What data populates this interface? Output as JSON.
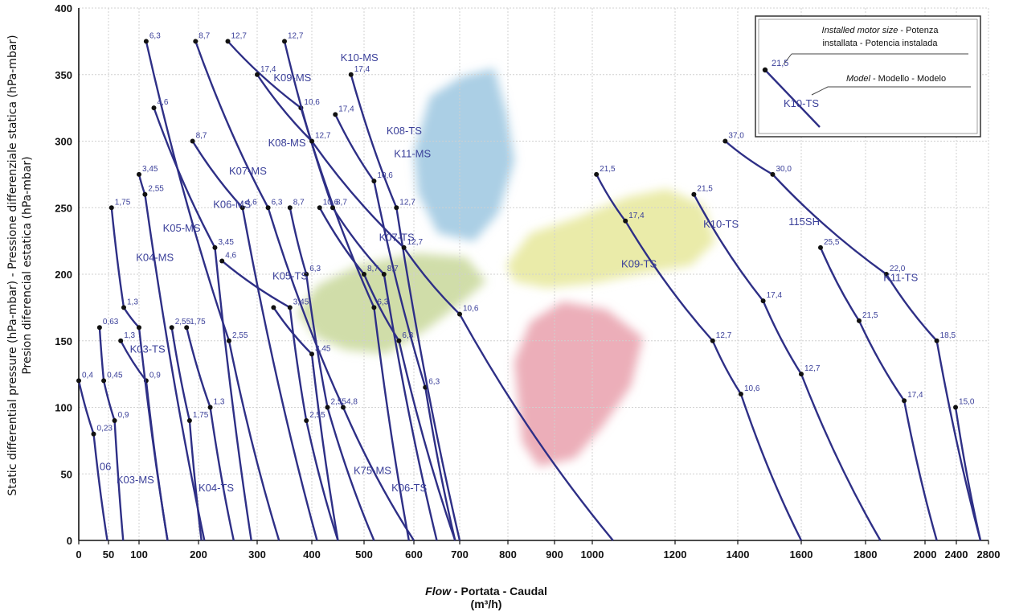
{
  "chart_data": {
    "type": "line",
    "xlabel_parts": [
      "Flow",
      " - Portata - Caudal"
    ],
    "xlabel_unit": "(m³/h)",
    "ylabel_lines": [
      "Static differential pressure (hPa-mbar) - Pressione differenziale statica (hPa-mbar)",
      "Presion diferencial estatica (hPa-mbar)"
    ],
    "y_ticks": [
      0,
      50,
      100,
      150,
      200,
      250,
      300,
      350,
      400
    ],
    "ylim": [
      0,
      400
    ],
    "x_ticks": [
      "0",
      "50",
      "100",
      "200",
      "300",
      "400",
      "500",
      "600",
      "700",
      "800",
      "900",
      "1000",
      "1200",
      "1400",
      "1600",
      "1800",
      "2000",
      "2400",
      "2800"
    ],
    "grid": true,
    "legend": {
      "placement": "top-right",
      "line1_italic": "Installed motor size",
      "line1_rest": " - Potenza",
      "line2": "installata - Potencia instalada",
      "motor_sample": "21,5",
      "line3_italic": "Model",
      "line3_rest": " - Modello - Modelo",
      "model_sample": "K10-TS"
    },
    "regions": [
      {
        "name": "blue",
        "color": "#8fbfdc"
      },
      {
        "name": "yellow-green",
        "color": "#e6e79a"
      },
      {
        "name": "olive",
        "color": "#c8d79a"
      },
      {
        "name": "pink",
        "color": "#e79aa8"
      }
    ],
    "series": [
      {
        "name": "06",
        "label_at": [
          35,
          53
        ],
        "points": [
          [
            0,
            120
          ],
          [
            25,
            80
          ],
          [
            48,
            0
          ]
        ],
        "labels": [
          "0,4",
          "0,23",
          null
        ]
      },
      {
        "name": "K03-MS",
        "label_at": [
          63,
          43
        ],
        "points": [
          [
            35,
            160
          ],
          [
            42,
            120
          ],
          [
            60,
            90
          ],
          [
            74,
            0
          ]
        ],
        "labels": [
          "0,63",
          "0,45",
          "0,9",
          null
        ]
      },
      {
        "name": "K03-TS",
        "label_at": [
          85,
          141
        ],
        "points": [
          [
            70,
            150
          ],
          [
            112,
            120
          ],
          [
            148,
            0
          ]
        ],
        "labels": [
          "1,3",
          "0,9",
          null
        ]
      },
      {
        "name": "K04-MS",
        "label_at": [
          95,
          210
        ],
        "points": [
          [
            55,
            250
          ],
          [
            75,
            175
          ],
          [
            100,
            160
          ],
          [
            148,
            0
          ]
        ],
        "labels": [
          "1,75",
          "1,3",
          null,
          null
        ]
      },
      {
        "name": "K05-MS",
        "label_at": [
          140,
          232
        ],
        "points": [
          [
            100,
            275
          ],
          [
            110,
            260
          ],
          [
            210,
            0
          ]
        ],
        "labels": [
          "3,45",
          "2,55",
          null
        ]
      },
      {
        "name": "K04-TS",
        "label_at": [
          200,
          37
        ],
        "points": [
          [
            155,
            160
          ],
          [
            185,
            90
          ],
          [
            205,
            0
          ]
        ],
        "labels": [
          "2,55",
          "1,75",
          null
        ]
      },
      {
        "name": "K04-TS-b",
        "label_at": null,
        "points": [
          [
            180,
            160
          ],
          [
            220,
            100
          ],
          [
            260,
            0
          ]
        ],
        "labels": [
          "1,75",
          "1,3",
          null
        ]
      },
      {
        "name": "K06-MS",
        "label_at": [
          225,
          250
        ],
        "points": [
          [
            125,
            325
          ],
          [
            228,
            220
          ],
          [
            290,
            0
          ]
        ],
        "labels": [
          "4,6",
          "3,45",
          null
        ]
      },
      {
        "name": "K07-MS",
        "label_at": [
          252,
          275
        ],
        "points": [
          [
            112,
            375
          ],
          [
            252,
            150
          ],
          [
            340,
            0
          ]
        ],
        "labels": [
          "6,3",
          "2,55",
          null
        ]
      },
      {
        "name": "K05-TS",
        "label_at": [
          328,
          196
        ],
        "points": [
          [
            240,
            210
          ],
          [
            360,
            175
          ],
          [
            390,
            90
          ],
          [
            450,
            0
          ]
        ],
        "labels": [
          "4,6",
          "3,45",
          "2,55",
          null
        ]
      },
      {
        "name": "K08-MS",
        "label_at": [
          320,
          296
        ],
        "points": [
          [
            190,
            300
          ],
          [
            275,
            250
          ],
          [
            410,
            0
          ]
        ],
        "labels": [
          "8,7",
          "4,6",
          null
        ]
      },
      {
        "name": "K75-MS",
        "label_at": [
          480,
          50
        ],
        "points": [
          [
            360,
            250
          ],
          [
            390,
            200
          ],
          [
            430,
            100
          ],
          [
            520,
            0
          ]
        ],
        "labels": [
          "8,7",
          "6,3",
          "2,55",
          null
        ]
      },
      {
        "name": "K05-TS-b",
        "label_at": null,
        "points": [
          [
            330,
            175
          ],
          [
            400,
            140
          ],
          [
            450,
            0
          ]
        ],
        "labels": [
          null,
          "3,45",
          null
        ]
      },
      {
        "name": "K06-TS",
        "label_at": [
          555,
          37
        ],
        "points": [
          [
            195,
            375
          ],
          [
            320,
            250
          ],
          [
            460,
            100
          ],
          [
            600,
            0
          ]
        ],
        "labels": [
          "8,7",
          "6,3",
          "4,8",
          null
        ]
      },
      {
        "name": "K08-TS",
        "label_at": [
          545,
          305
        ],
        "points": [
          [
            445,
            320
          ],
          [
            520,
            270
          ],
          [
            625,
            115
          ],
          [
            690,
            0
          ]
        ],
        "labels": [
          "17,4",
          "10,6",
          "6,3",
          null
        ]
      },
      {
        "name": "K09-MS",
        "label_at": [
          330,
          345
        ],
        "points": [
          [
            250,
            375
          ],
          [
            380,
            325
          ],
          [
            520,
            175
          ],
          [
            590,
            0
          ]
        ],
        "labels": [
          "12,7",
          "10,6",
          "6,3",
          null
        ]
      },
      {
        "name": "K07-TS",
        "label_at": [
          530,
          225
        ],
        "points": [
          [
            415,
            250
          ],
          [
            500,
            200
          ],
          [
            570,
            150
          ],
          [
            690,
            0
          ]
        ],
        "labels": [
          "10,6",
          "8,7",
          "6,3",
          null
        ]
      },
      {
        "name": "K10-MS",
        "label_at": [
          455,
          360
        ],
        "points": [
          [
            350,
            375
          ],
          [
            440,
            250
          ],
          [
            540,
            200
          ],
          [
            650,
            0
          ]
        ],
        "labels": [
          "12,7",
          "8,7",
          "8,7",
          null
        ]
      },
      {
        "name": "K11-MS",
        "label_at": [
          560,
          288
        ],
        "points": [
          [
            475,
            350
          ],
          [
            565,
            250
          ],
          [
            700,
            0
          ]
        ],
        "labels": [
          "17,4",
          "12,7",
          null
        ]
      },
      {
        "name": "K08-MS-b",
        "label_at": null,
        "points": [
          [
            300,
            350
          ],
          [
            400,
            300
          ],
          [
            580,
            220
          ],
          [
            700,
            170
          ],
          [
            1050,
            0
          ]
        ],
        "labels": [
          "17,4",
          "12,7",
          "12,7",
          "10,6",
          null
        ]
      },
      {
        "name": "K09-TS",
        "label_at": [
          1070,
          205
        ],
        "points": [
          [
            1010,
            275
          ],
          [
            1080,
            240
          ],
          [
            1320,
            150
          ],
          [
            1410,
            110
          ],
          [
            1600,
            0
          ]
        ],
        "labels": [
          "21,5",
          "17,4",
          "12,7",
          "10,6",
          null
        ]
      },
      {
        "name": "K10-TS",
        "label_at": [
          1290,
          235
        ],
        "points": [
          [
            1260,
            260
          ],
          [
            1480,
            180
          ],
          [
            1600,
            125
          ],
          [
            1850,
            0
          ]
        ],
        "labels": [
          "21,5",
          "17,4",
          "12,7",
          null
        ]
      },
      {
        "name": "115SH",
        "label_at": [
          1560,
          237
        ],
        "points": [
          [
            1360,
            300
          ],
          [
            1510,
            275
          ],
          [
            1870,
            200
          ],
          [
            2150,
            150
          ],
          [
            2700,
            0
          ]
        ],
        "labels": [
          "37,0",
          "30,0",
          "22,0",
          "18,5",
          null
        ]
      },
      {
        "name": "K11-TS",
        "label_at": [
          1860,
          195
        ],
        "points": [
          [
            1660,
            220
          ],
          [
            1780,
            165
          ],
          [
            1930,
            105
          ],
          [
            2150,
            0
          ]
        ],
        "labels": [
          "25,5",
          "21,5",
          "17,4",
          null
        ]
      },
      {
        "name": "K11-TS-b",
        "label_at": null,
        "points": [
          [
            2390,
            100
          ],
          [
            2700,
            0
          ]
        ],
        "labels": [
          "15,0",
          null
        ]
      }
    ]
  }
}
